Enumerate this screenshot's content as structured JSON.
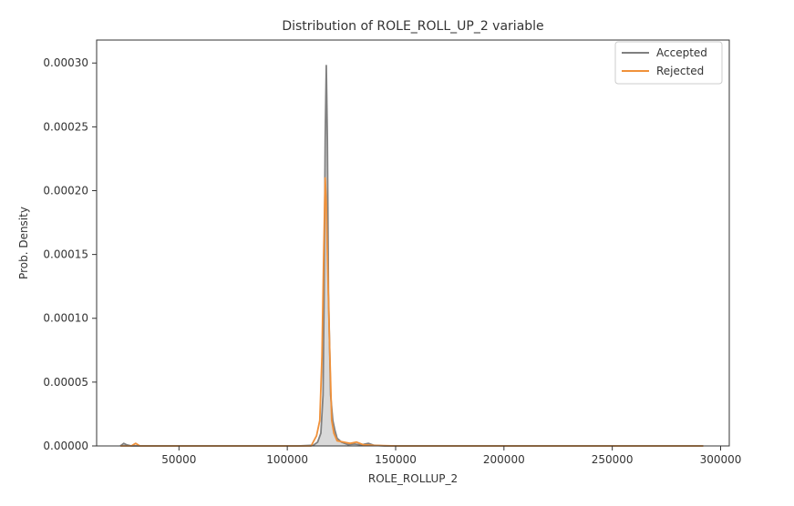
{
  "chart_data": {
    "type": "line",
    "title": "Distribution of ROLE_ROLL_UP_2 variable",
    "xlabel": "ROLE_ROLLUP_2",
    "ylabel": "Prob. Density",
    "xlim": [
      12000,
      304000
    ],
    "ylim": [
      0,
      0.000318
    ],
    "xticks": [
      50000,
      100000,
      150000,
      200000,
      250000,
      300000
    ],
    "xtick_labels": [
      "50000",
      "100000",
      "150000",
      "200000",
      "250000",
      "300000"
    ],
    "yticks": [
      0,
      5e-05,
      0.0001,
      0.00015,
      0.0002,
      0.00025,
      0.0003
    ],
    "ytick_labels": [
      "0.00000",
      "0.00005",
      "0.00010",
      "0.00015",
      "0.00020",
      "0.00025",
      "0.00030"
    ],
    "grid": false,
    "legend_position": "top-right",
    "series": [
      {
        "name": "Accepted",
        "color": "#808080",
        "fill": true,
        "x": [
          23000,
          24500,
          26000,
          28000,
          40000,
          80000,
          105000,
          112000,
          114000,
          115500,
          116500,
          117000,
          117500,
          118000,
          118500,
          119000,
          119500,
          120000,
          120500,
          121000,
          122000,
          123000,
          125000,
          128000,
          131000,
          134000,
          137500,
          140000,
          145000,
          200000,
          250000,
          292000
        ],
        "y": [
          0,
          2e-06,
          8e-07,
          0,
          0,
          0,
          0,
          5e-07,
          3e-06,
          1e-05,
          4e-05,
          0.00012,
          0.00024,
          0.000298,
          0.00024,
          0.00012,
          8e-05,
          4e-05,
          3e-05,
          2e-05,
          1.2e-05,
          6e-06,
          3e-06,
          1e-06,
          1.5e-06,
          8e-07,
          2e-06,
          5e-07,
          0,
          0,
          0,
          0
        ]
      },
      {
        "name": "Rejected",
        "color": "#f0913a",
        "fill": false,
        "x": [
          23000,
          28000,
          30000,
          32000,
          40000,
          80000,
          105000,
          111000,
          113500,
          115000,
          116000,
          116800,
          117500,
          118000,
          118500,
          119500,
          120500,
          121500,
          123000,
          126000,
          129000,
          132000,
          135000,
          140000,
          150000,
          200000,
          250000,
          292000
        ],
        "y": [
          0,
          0,
          2e-06,
          0,
          0,
          0,
          0,
          0,
          8e-06,
          2e-05,
          7e-05,
          0.00015,
          0.00021,
          0.00019,
          0.00015,
          8e-05,
          2e-05,
          1e-05,
          4e-06,
          3e-06,
          2e-06,
          3e-06,
          1e-06,
          4e-07,
          0,
          0,
          0,
          0
        ]
      }
    ]
  }
}
